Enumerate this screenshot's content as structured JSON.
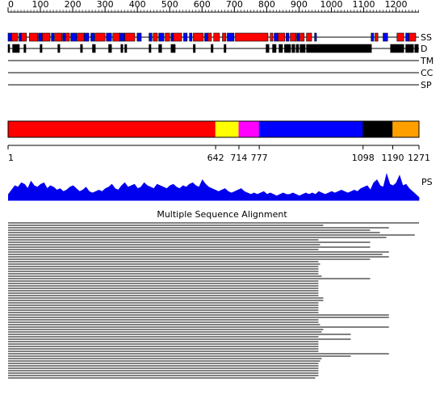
{
  "chart_data": {
    "type": "sequence-features",
    "length": 1271,
    "ruler": {
      "xlim": [
        0,
        1271
      ],
      "xticks": [
        0,
        100,
        200,
        300,
        400,
        500,
        600,
        700,
        800,
        900,
        1000,
        1100,
        1200
      ],
      "minor_tick_step": 10
    },
    "tracks": {
      "ss": {
        "label": "SS",
        "helix_color": "#ff0000",
        "strand_color": "#0000ff",
        "helices": [
          [
            12,
            30
          ],
          [
            42,
            57
          ],
          [
            67,
            92
          ],
          [
            107,
            130
          ],
          [
            145,
            167
          ],
          [
            180,
            190
          ],
          [
            215,
            235
          ],
          [
            270,
            300
          ],
          [
            325,
            345
          ],
          [
            362,
            392
          ],
          [
            450,
            462
          ],
          [
            487,
            500
          ],
          [
            512,
            537
          ],
          [
            574,
            604
          ],
          [
            619,
            629
          ],
          [
            637,
            654
          ],
          [
            664,
            674
          ],
          [
            704,
            804
          ],
          [
            812,
            819
          ],
          [
            836,
            856
          ],
          [
            874,
            891
          ],
          [
            904,
            916
          ],
          [
            924,
            939
          ],
          [
            1136,
            1144
          ],
          [
            1204,
            1224
          ],
          [
            1241,
            1261
          ]
        ],
        "strands": [
          [
            1,
            10
          ],
          [
            35,
            40
          ],
          [
            95,
            105
          ],
          [
            135,
            142
          ],
          [
            170,
            177
          ],
          [
            195,
            212
          ],
          [
            237,
            250
          ],
          [
            257,
            267
          ],
          [
            305,
            320
          ],
          [
            347,
            360
          ],
          [
            400,
            412
          ],
          [
            437,
            445
          ],
          [
            467,
            482
          ],
          [
            505,
            510
          ],
          [
            544,
            554
          ],
          [
            562,
            569
          ],
          [
            609,
            617
          ],
          [
            679,
            699
          ],
          [
            824,
            834
          ],
          [
            861,
            869
          ],
          [
            894,
            901
          ],
          [
            949,
            954
          ],
          [
            1124,
            1131
          ],
          [
            1161,
            1174
          ],
          [
            1231,
            1239
          ]
        ]
      },
      "d": {
        "label": "D",
        "color": "#000000",
        "segments": [
          [
            1,
            5
          ],
          [
            15,
            35
          ],
          [
            50,
            55
          ],
          [
            100,
            105
          ],
          [
            155,
            160
          ],
          [
            225,
            230
          ],
          [
            262,
            270
          ],
          [
            312,
            320
          ],
          [
            350,
            355
          ],
          [
            362,
            367
          ],
          [
            437,
            442
          ],
          [
            467,
            475
          ],
          [
            505,
            517
          ],
          [
            574,
            579
          ],
          [
            629,
            634
          ],
          [
            669,
            674
          ],
          [
            799,
            807
          ],
          [
            819,
            829
          ],
          [
            839,
            849
          ],
          [
            856,
            874
          ],
          [
            879,
            887
          ],
          [
            892,
            899
          ],
          [
            904,
            919
          ],
          [
            924,
            1124
          ],
          [
            1184,
            1224
          ],
          [
            1231,
            1254
          ],
          [
            1259,
            1269
          ]
        ]
      },
      "tm": {
        "label": "TM"
      },
      "cc": {
        "label": "CC"
      },
      "sp": {
        "label": "SP"
      }
    },
    "domains": {
      "segments": [
        {
          "start": 1,
          "end": 642,
          "color": "#ff0000"
        },
        {
          "start": 642,
          "end": 714,
          "color": "#ffff00"
        },
        {
          "start": 714,
          "end": 777,
          "color": "#ff00ff"
        },
        {
          "start": 777,
          "end": 1098,
          "color": "#0000ff"
        },
        {
          "start": 1098,
          "end": 1190,
          "color": "#000000"
        },
        {
          "start": 1190,
          "end": 1271,
          "color": "#ffa000"
        }
      ],
      "boundaries": [
        1,
        642,
        714,
        777,
        1098,
        1190,
        1271
      ]
    },
    "profile": {
      "label": "PS",
      "color": "#0000ee",
      "ylim": [
        0,
        1
      ],
      "x": [
        1,
        11,
        21,
        31,
        41,
        51,
        61,
        71,
        81,
        91,
        101,
        111,
        121,
        131,
        141,
        151,
        161,
        171,
        181,
        191,
        201,
        211,
        221,
        231,
        241,
        251,
        261,
        271,
        281,
        291,
        301,
        311,
        321,
        331,
        341,
        351,
        361,
        371,
        381,
        391,
        401,
        411,
        421,
        431,
        441,
        451,
        461,
        471,
        481,
        491,
        501,
        511,
        521,
        531,
        541,
        551,
        561,
        571,
        581,
        591,
        601,
        611,
        621,
        631,
        641,
        651,
        661,
        671,
        681,
        691,
        701,
        711,
        721,
        731,
        741,
        751,
        761,
        771,
        781,
        791,
        801,
        811,
        821,
        831,
        841,
        851,
        861,
        871,
        881,
        891,
        901,
        911,
        921,
        931,
        941,
        951,
        961,
        971,
        981,
        991,
        1001,
        1011,
        1021,
        1031,
        1041,
        1051,
        1061,
        1071,
        1081,
        1091,
        1101,
        1111,
        1121,
        1131,
        1141,
        1151,
        1161,
        1171,
        1181,
        1191,
        1201,
        1211,
        1221,
        1231,
        1241,
        1251,
        1261,
        1271
      ],
      "values": [
        0.2,
        0.35,
        0.5,
        0.45,
        0.6,
        0.55,
        0.4,
        0.65,
        0.5,
        0.45,
        0.55,
        0.6,
        0.4,
        0.5,
        0.45,
        0.35,
        0.4,
        0.3,
        0.35,
        0.45,
        0.5,
        0.4,
        0.3,
        0.35,
        0.45,
        0.3,
        0.25,
        0.3,
        0.35,
        0.3,
        0.4,
        0.45,
        0.55,
        0.4,
        0.35,
        0.5,
        0.6,
        0.45,
        0.5,
        0.55,
        0.4,
        0.45,
        0.6,
        0.5,
        0.45,
        0.4,
        0.55,
        0.5,
        0.45,
        0.4,
        0.5,
        0.55,
        0.45,
        0.4,
        0.5,
        0.45,
        0.55,
        0.6,
        0.5,
        0.45,
        0.7,
        0.55,
        0.45,
        0.4,
        0.35,
        0.3,
        0.35,
        0.4,
        0.3,
        0.25,
        0.3,
        0.35,
        0.4,
        0.3,
        0.25,
        0.2,
        0.25,
        0.2,
        0.25,
        0.3,
        0.2,
        0.25,
        0.2,
        0.15,
        0.2,
        0.25,
        0.2,
        0.2,
        0.25,
        0.2,
        0.15,
        0.2,
        0.25,
        0.2,
        0.25,
        0.2,
        0.3,
        0.25,
        0.2,
        0.25,
        0.3,
        0.25,
        0.3,
        0.35,
        0.3,
        0.25,
        0.3,
        0.35,
        0.3,
        0.4,
        0.45,
        0.5,
        0.35,
        0.6,
        0.7,
        0.5,
        0.45,
        0.9,
        0.55,
        0.5,
        0.6,
        0.85,
        0.5,
        0.55,
        0.4,
        0.3,
        0.2,
        0.1
      ]
    },
    "alignment": {
      "title": "Multiple Sequence Alignment",
      "color": "#000000",
      "rows": [
        [
          1,
          1271
        ],
        [
          1,
          975
        ],
        [
          1,
          1178
        ],
        [
          1,
          1120
        ],
        [
          1,
          1150
        ],
        [
          1,
          1258
        ],
        [
          1,
          1170
        ],
        [
          1,
          960
        ],
        [
          1,
          1120
        ],
        [
          1,
          965
        ],
        [
          1,
          1120
        ],
        [
          1,
          960
        ],
        [
          1,
          1178
        ],
        [
          1,
          1158
        ],
        [
          1,
          1178
        ],
        [
          1,
          1120
        ],
        [
          1,
          960
        ],
        [
          1,
          965
        ],
        [
          1,
          960
        ],
        [
          1,
          960
        ],
        [
          1,
          960
        ],
        [
          1,
          960
        ],
        [
          1,
          970
        ],
        [
          1,
          1120
        ],
        [
          1,
          960
        ],
        [
          1,
          960
        ],
        [
          1,
          960
        ],
        [
          1,
          960
        ],
        [
          1,
          960
        ],
        [
          1,
          960
        ],
        [
          1,
          960
        ],
        [
          1,
          975
        ],
        [
          1,
          975
        ],
        [
          1,
          960
        ],
        [
          1,
          960
        ],
        [
          1,
          960
        ],
        [
          1,
          960
        ],
        [
          1,
          960
        ],
        [
          1,
          1178
        ],
        [
          1,
          1178
        ],
        [
          1,
          960
        ],
        [
          1,
          960
        ],
        [
          1,
          965
        ],
        [
          1,
          1178
        ],
        [
          1,
          975
        ],
        [
          1,
          970
        ],
        [
          1,
          1060
        ],
        [
          1,
          960
        ],
        [
          1,
          1060
        ],
        [
          1,
          960
        ],
        [
          1,
          960
        ],
        [
          1,
          960
        ],
        [
          1,
          960
        ],
        [
          1,
          960
        ],
        [
          1,
          1178
        ],
        [
          1,
          1060
        ],
        [
          1,
          970
        ],
        [
          1,
          965
        ],
        [
          1,
          960
        ],
        [
          1,
          960
        ],
        [
          1,
          960
        ],
        [
          1,
          960
        ],
        [
          1,
          960
        ],
        [
          1,
          960
        ],
        [
          1,
          950
        ]
      ]
    }
  }
}
